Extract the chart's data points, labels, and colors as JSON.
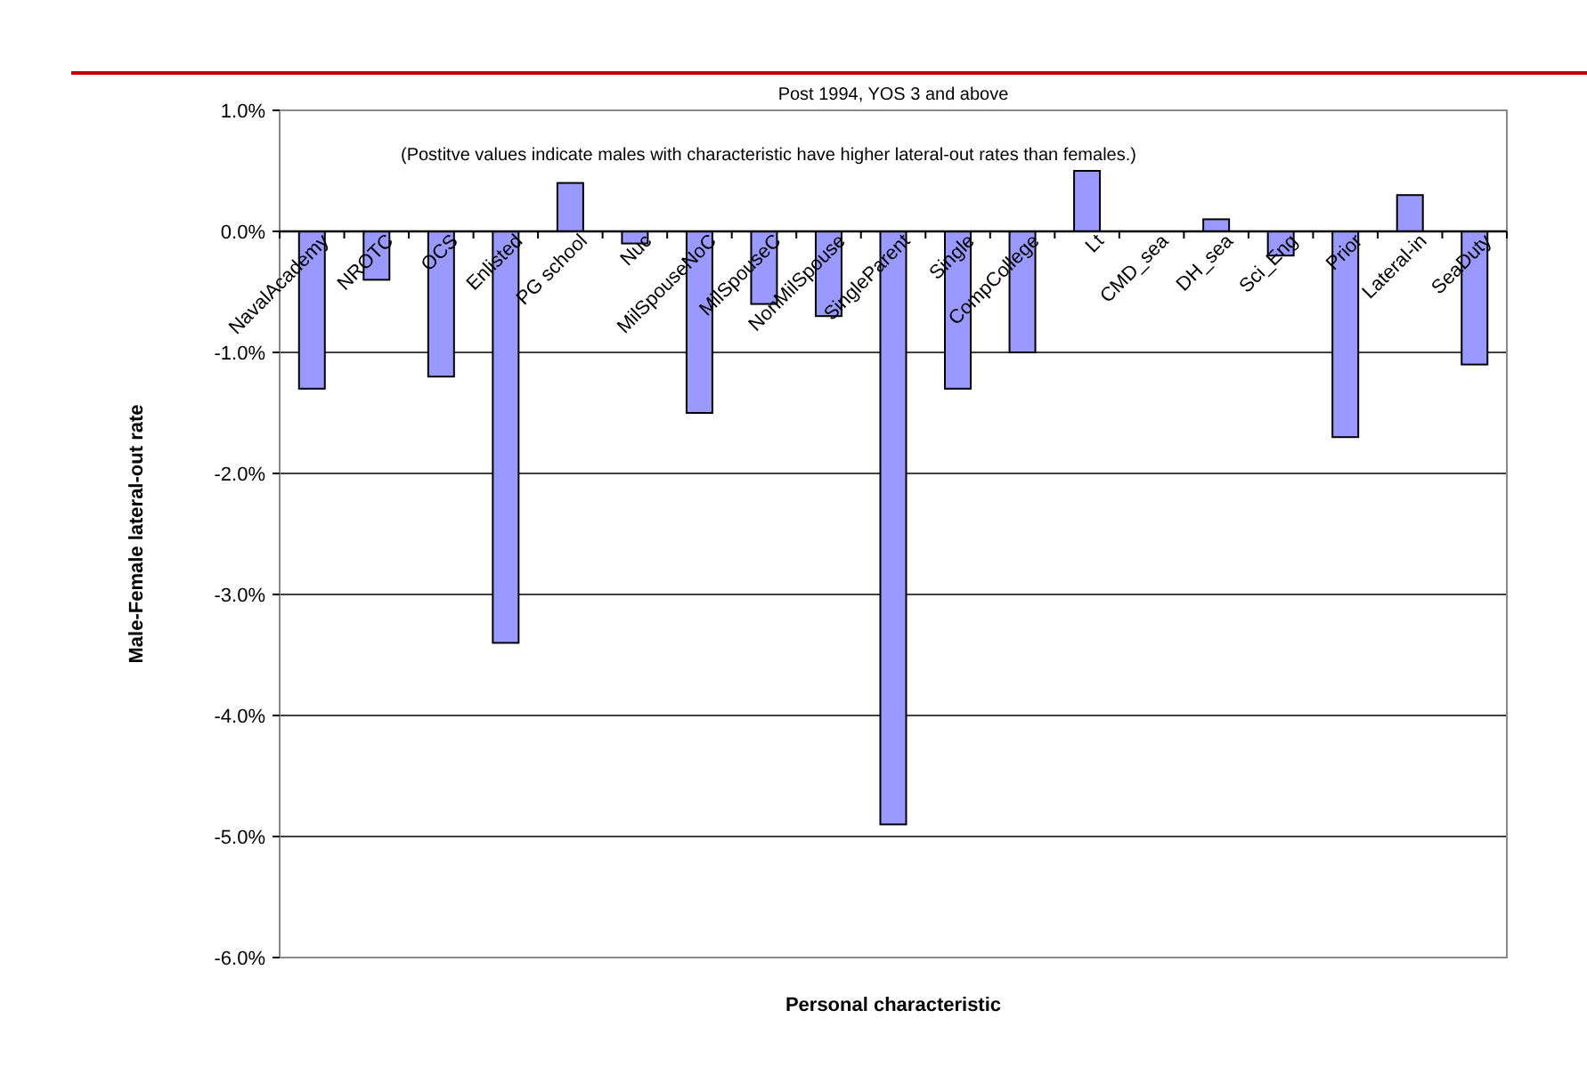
{
  "chart_data": {
    "type": "bar",
    "title": "Post 1994, YOS 3 and above",
    "xlabel": "Personal characteristic",
    "ylabel": "Male-Female lateral-out rate",
    "annotations": [
      "(Postitve values indicate males with characteristic have higher lateral-out rates than females.)"
    ],
    "categories": [
      "NavalAcademy",
      "NROTC",
      "OCS",
      "Enlisted",
      "PG school",
      "Nuc",
      "MilSpouseNoC",
      "MilSpouseC",
      "NonMilSpouse",
      "SingleParent",
      "Single",
      "CompCollege",
      "Lt",
      "CMD_sea",
      "DH_sea",
      "Sci_Eng",
      "Prior",
      "Lateral-in",
      "SeaDuty"
    ],
    "values": [
      -1.3,
      -0.4,
      -1.2,
      -3.4,
      0.4,
      -0.1,
      -1.5,
      -0.6,
      -0.7,
      -4.9,
      -1.3,
      -1.0,
      0.5,
      0,
      0.1,
      -0.2,
      -1.7,
      0.3,
      -1.1
    ],
    "color": "#9999ff",
    "ylim": [
      -6,
      1
    ],
    "yticks": [
      {
        "value": -6,
        "label": "-6.0%"
      },
      {
        "value": -5,
        "label": "-5.0%"
      },
      {
        "value": -4,
        "label": "-4.0%"
      },
      {
        "value": -3,
        "label": "-3.0%"
      },
      {
        "value": -2,
        "label": "-2.0%"
      },
      {
        "value": -1,
        "label": "-1.0%"
      },
      {
        "value": 0,
        "label": "0.0%"
      },
      {
        "value": 1,
        "label": "1.0%"
      }
    ],
    "grid": "y"
  }
}
